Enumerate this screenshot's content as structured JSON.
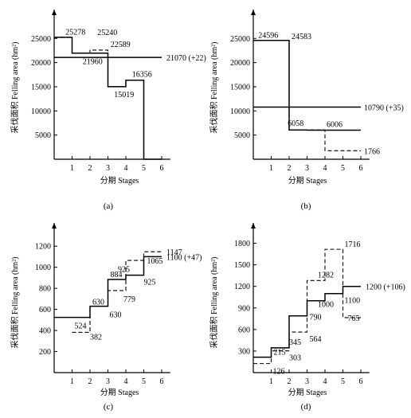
{
  "chart_data": [
    {
      "id": "a",
      "type": "line",
      "caption": "(a)",
      "xlabel": "分期 Stages",
      "ylabel": "采伐面积 Felling area (hm²)",
      "x_ticks": [
        1,
        2,
        3,
        4,
        5,
        6
      ],
      "y_ticks": [
        5000,
        10000,
        15000,
        20000,
        25000
      ],
      "xlim": [
        0,
        6.3
      ],
      "ylim": [
        0,
        29000
      ],
      "series": [
        {
          "style": "dashed",
          "values": [
            25278,
            21960,
            22589,
            15019,
            16356,
            0
          ]
        },
        {
          "style": "solid",
          "values": [
            25240,
            21960,
            21960,
            15019,
            16356,
            0
          ]
        },
        {
          "style": "solid-line",
          "value": 21070
        }
      ],
      "annotations": [
        {
          "text": "25278",
          "x": 0.5,
          "y": 25278
        },
        {
          "text": "25240",
          "x": 2.5,
          "y": 25240
        },
        {
          "text": "21960",
          "x": 1.5,
          "y": 21960
        },
        {
          "text": "22589",
          "x": 3.5,
          "y": 22589
        },
        {
          "text": "15019",
          "x": 4.5,
          "y": 15019
        },
        {
          "text": "16356",
          "x": 5.5,
          "y": 16356
        },
        {
          "text": "21070 (+22)",
          "x": 6,
          "y": 21070
        }
      ]
    },
    {
      "id": "b",
      "type": "line",
      "caption": "(b)",
      "xlabel": "分期 Stages",
      "ylabel": "采伐面积 Felling area (hm²)",
      "x_ticks": [
        1,
        2,
        3,
        4,
        5,
        6
      ],
      "y_ticks": [
        5000,
        10000,
        15000,
        20000,
        25000
      ],
      "xlim": [
        0,
        6.3
      ],
      "ylim": [
        0,
        29000
      ],
      "series": [
        {
          "style": "dashed",
          "values": [
            24596,
            24596,
            6058,
            6058,
            1766,
            1766
          ]
        },
        {
          "style": "solid",
          "values": [
            24583,
            24583,
            6058,
            6006,
            6006,
            6006
          ]
        },
        {
          "style": "solid-line",
          "value": 10790
        }
      ],
      "annotations": [
        {
          "text": "24596",
          "x": 0.5,
          "y": 24596
        },
        {
          "text": "24583",
          "x": 2,
          "y": 24583
        },
        {
          "text": "6058",
          "x": 2.5,
          "y": 6058
        },
        {
          "text": "6006",
          "x": 4,
          "y": 6006
        },
        {
          "text": "1766",
          "x": 6,
          "y": 1766
        },
        {
          "text": "10790 (+35)",
          "x": 6,
          "y": 10790
        }
      ]
    },
    {
      "id": "c",
      "type": "line",
      "caption": "(c)",
      "xlabel": "分期 Stages",
      "ylabel": "采伐面积 Felling area (hm²)",
      "x_ticks": [
        1,
        2,
        3,
        4,
        5,
        6
      ],
      "y_ticks": [
        200,
        400,
        600,
        800,
        1000,
        1200
      ],
      "xlim": [
        0,
        6.3
      ],
      "ylim": [
        0,
        1330
      ],
      "series": [
        {
          "style": "dashed",
          "values": [
            382,
            630,
            779,
            1065,
            1147,
            1147
          ]
        },
        {
          "style": "solid",
          "values": [
            524,
            630,
            884,
            925,
            1100,
            1100
          ]
        },
        {
          "style": "solid-line",
          "value": 524
        }
      ],
      "annotations": [
        {
          "text": "524",
          "x": 1,
          "y": 524
        },
        {
          "text": "382",
          "x": 2,
          "y": 382
        },
        {
          "text": "630",
          "x": 2,
          "y": 630
        },
        {
          "text": "630",
          "x": 3,
          "y": 630
        },
        {
          "text": "884",
          "x": 3,
          "y": 884
        },
        {
          "text": "925",
          "x": 4,
          "y": 925
        },
        {
          "text": "779",
          "x": 4,
          "y": 779
        },
        {
          "text": "1065",
          "x": 5,
          "y": 1065
        },
        {
          "text": "925",
          "x": 5,
          "y": 925
        },
        {
          "text": "1147",
          "x": 6,
          "y": 1147
        },
        {
          "text": "1100 (+47)",
          "x": 6,
          "y": 1100
        }
      ]
    },
    {
      "id": "d",
      "type": "line",
      "caption": "(d)",
      "xlabel": "分期 Stages",
      "ylabel": "采伐面积 Felling area (hm²)",
      "x_ticks": [
        1,
        2,
        3,
        4,
        5,
        6
      ],
      "y_ticks": [
        300,
        600,
        900,
        1200,
        1500,
        1800
      ],
      "xlim": [
        0,
        6.3
      ],
      "ylim": [
        0,
        1950
      ],
      "series": [
        {
          "style": "dashed",
          "values": [
            126,
            303,
            564,
            1282,
            1716,
            765
          ]
        },
        {
          "style": "solid",
          "values": [
            215,
            345,
            790,
            1000,
            1100,
            1200
          ]
        }
      ],
      "annotations": [
        {
          "text": "215",
          "x": 1,
          "y": 215
        },
        {
          "text": "126",
          "x": 1,
          "y": 126
        },
        {
          "text": "345",
          "x": 2,
          "y": 345
        },
        {
          "text": "303",
          "x": 2,
          "y": 303
        },
        {
          "text": "790",
          "x": 3,
          "y": 790
        },
        {
          "text": "564",
          "x": 3,
          "y": 564
        },
        {
          "text": "1282",
          "x": 4,
          "y": 1282
        },
        {
          "text": "1000",
          "x": 4,
          "y": 1000
        },
        {
          "text": "1716",
          "x": 5,
          "y": 1716
        },
        {
          "text": "1100",
          "x": 5,
          "y": 1100
        },
        {
          "text": "765",
          "x": 5,
          "y": 765
        },
        {
          "text": "1200 (+106)",
          "x": 6,
          "y": 1200
        }
      ]
    }
  ]
}
